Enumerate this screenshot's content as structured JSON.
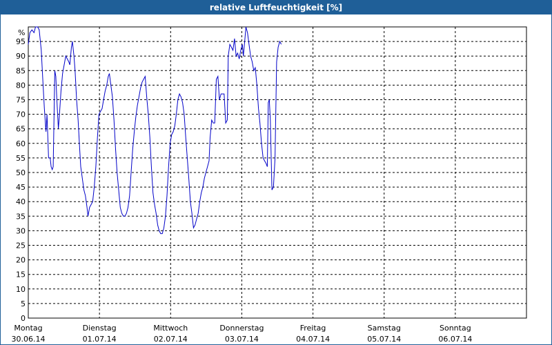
{
  "window": {
    "title": "relative Luftfeuchtigkeit [%]"
  },
  "chart_data": {
    "type": "line",
    "title": "relative Luftfeuchtigkeit [%]",
    "y_unit_label": "%",
    "ylim": [
      0,
      100
    ],
    "yticks": [
      0,
      5,
      10,
      15,
      20,
      25,
      30,
      35,
      40,
      45,
      50,
      55,
      60,
      65,
      70,
      75,
      80,
      85,
      90,
      95
    ],
    "xlim": [
      0,
      7
    ],
    "x_unit": "days since 30.06.14 00:00",
    "x_ticks": [
      {
        "day": "Montag",
        "date": "30.06.14"
      },
      {
        "day": "Dienstag",
        "date": "01.07.14"
      },
      {
        "day": "Mittwoch",
        "date": "02.07.14"
      },
      {
        "day": "Donnerstag",
        "date": "03.07.14"
      },
      {
        "day": "Freitag",
        "date": "04.07.14"
      },
      {
        "day": "Samstag",
        "date": "05.07.14"
      },
      {
        "day": "Sonntag",
        "date": "06.07.14"
      }
    ],
    "grid": true,
    "line_color": "#0000c8",
    "series": [
      {
        "name": "",
        "points": [
          [
            0.0,
            94
          ],
          [
            0.022,
            98
          ],
          [
            0.051,
            99
          ],
          [
            0.08,
            98
          ],
          [
            0.102,
            100
          ],
          [
            0.131,
            100
          ],
          [
            0.153,
            99
          ],
          [
            0.182,
            92
          ],
          [
            0.204,
            82
          ],
          [
            0.226,
            72
          ],
          [
            0.248,
            64
          ],
          [
            0.263,
            70
          ],
          [
            0.285,
            55
          ],
          [
            0.307,
            55
          ],
          [
            0.321,
            52
          ],
          [
            0.336,
            51
          ],
          [
            0.35,
            52
          ],
          [
            0.372,
            85
          ],
          [
            0.387,
            83
          ],
          [
            0.401,
            75
          ],
          [
            0.423,
            65
          ],
          [
            0.438,
            70
          ],
          [
            0.46,
            78
          ],
          [
            0.482,
            84
          ],
          [
            0.504,
            87
          ],
          [
            0.526,
            90
          ],
          [
            0.548,
            89
          ],
          [
            0.569,
            88
          ],
          [
            0.584,
            87
          ],
          [
            0.606,
            93
          ],
          [
            0.62,
            95
          ],
          [
            0.642,
            90
          ],
          [
            0.657,
            85
          ],
          [
            0.679,
            75
          ],
          [
            0.7,
            68
          ],
          [
            0.722,
            58
          ],
          [
            0.737,
            52
          ],
          [
            0.759,
            48
          ],
          [
            0.781,
            44
          ],
          [
            0.803,
            42
          ],
          [
            0.825,
            38
          ],
          [
            0.839,
            35
          ],
          [
            0.861,
            38
          ],
          [
            0.883,
            39
          ],
          [
            0.905,
            40
          ],
          [
            0.927,
            45
          ],
          [
            0.949,
            52
          ],
          [
            0.971,
            62
          ],
          [
            0.993,
            70
          ],
          [
            1.015,
            71
          ],
          [
            1.037,
            72
          ],
          [
            1.058,
            75
          ],
          [
            1.08,
            78
          ],
          [
            1.102,
            80
          ],
          [
            1.124,
            83
          ],
          [
            1.139,
            84
          ],
          [
            1.161,
            80
          ],
          [
            1.182,
            76
          ],
          [
            1.204,
            68
          ],
          [
            1.226,
            58
          ],
          [
            1.248,
            50
          ],
          [
            1.27,
            44
          ],
          [
            1.292,
            38
          ],
          [
            1.314,
            36
          ],
          [
            1.336,
            35
          ],
          [
            1.358,
            35
          ],
          [
            1.38,
            36
          ],
          [
            1.401,
            38
          ],
          [
            1.423,
            42
          ],
          [
            1.445,
            50
          ],
          [
            1.467,
            58
          ],
          [
            1.489,
            64
          ],
          [
            1.511,
            69
          ],
          [
            1.533,
            73
          ],
          [
            1.555,
            76
          ],
          [
            1.577,
            79
          ],
          [
            1.599,
            81
          ],
          [
            1.62,
            82
          ],
          [
            1.642,
            83
          ],
          [
            1.664,
            76
          ],
          [
            1.686,
            70
          ],
          [
            1.708,
            62
          ],
          [
            1.73,
            52
          ],
          [
            1.752,
            43
          ],
          [
            1.774,
            39
          ],
          [
            1.796,
            36
          ],
          [
            1.818,
            32
          ],
          [
            1.839,
            30
          ],
          [
            1.861,
            29
          ],
          [
            1.883,
            29
          ],
          [
            1.905,
            31
          ],
          [
            1.927,
            35
          ],
          [
            1.949,
            42
          ],
          [
            1.971,
            52
          ],
          [
            1.993,
            60
          ],
          [
            2.015,
            63
          ],
          [
            2.036,
            64
          ],
          [
            2.058,
            66
          ],
          [
            2.08,
            70
          ],
          [
            2.102,
            75
          ],
          [
            2.124,
            77
          ],
          [
            2.146,
            76
          ],
          [
            2.168,
            74
          ],
          [
            2.19,
            70
          ],
          [
            2.212,
            62
          ],
          [
            2.234,
            55
          ],
          [
            2.255,
            48
          ],
          [
            2.277,
            40
          ],
          [
            2.299,
            36
          ],
          [
            2.321,
            31
          ],
          [
            2.343,
            32
          ],
          [
            2.365,
            34
          ],
          [
            2.387,
            36
          ],
          [
            2.409,
            40
          ],
          [
            2.431,
            43
          ],
          [
            2.453,
            45
          ],
          [
            2.474,
            48
          ],
          [
            2.496,
            50
          ],
          [
            2.518,
            52
          ],
          [
            2.54,
            54
          ],
          [
            2.555,
            62
          ],
          [
            2.577,
            68
          ],
          [
            2.599,
            67
          ],
          [
            2.62,
            67
          ],
          [
            2.642,
            82
          ],
          [
            2.664,
            83
          ],
          [
            2.686,
            75
          ],
          [
            2.708,
            77
          ],
          [
            2.73,
            77
          ],
          [
            2.752,
            77
          ],
          [
            2.774,
            67
          ],
          [
            2.796,
            68
          ],
          [
            2.81,
            90
          ],
          [
            2.832,
            94
          ],
          [
            2.854,
            93
          ],
          [
            2.876,
            92
          ],
          [
            2.898,
            96
          ],
          [
            2.92,
            90
          ],
          [
            2.942,
            91
          ],
          [
            2.964,
            89
          ],
          [
            2.985,
            92
          ],
          [
            3.007,
            94
          ],
          [
            3.022,
            90
          ],
          [
            3.044,
            96
          ],
          [
            3.058,
            100
          ],
          [
            3.08,
            98
          ],
          [
            3.102,
            94
          ],
          [
            3.124,
            90
          ],
          [
            3.146,
            88
          ],
          [
            3.168,
            85
          ],
          [
            3.19,
            86
          ],
          [
            3.212,
            80
          ],
          [
            3.234,
            72
          ],
          [
            3.255,
            67
          ],
          [
            3.277,
            60
          ],
          [
            3.299,
            55
          ],
          [
            3.321,
            54
          ],
          [
            3.343,
            53
          ],
          [
            3.358,
            52
          ],
          [
            3.372,
            74
          ],
          [
            3.387,
            75
          ],
          [
            3.401,
            68
          ],
          [
            3.423,
            44
          ],
          [
            3.445,
            45
          ],
          [
            3.467,
            55
          ],
          [
            3.489,
            88
          ],
          [
            3.511,
            93
          ],
          [
            3.533,
            95
          ],
          [
            3.555,
            94
          ]
        ]
      }
    ]
  }
}
